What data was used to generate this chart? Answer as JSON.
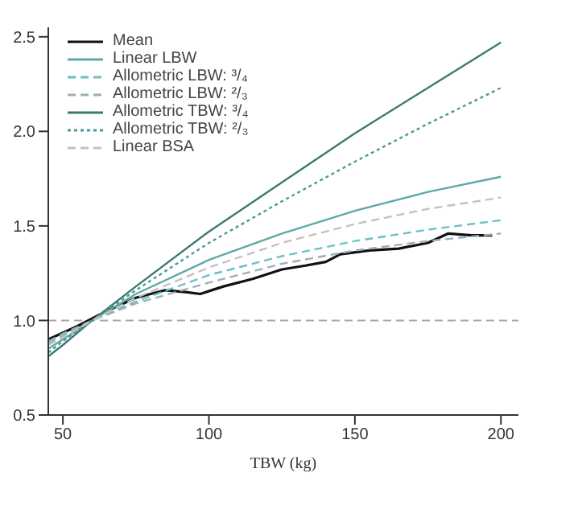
{
  "chart_data": {
    "type": "line",
    "xlabel": "TBW (kg)",
    "x": [
      45,
      50,
      60,
      75,
      100,
      125,
      150,
      175,
      200
    ],
    "xlim": [
      45,
      206
    ],
    "xticks": [
      50,
      100,
      150,
      200
    ],
    "ylim": [
      0.5,
      2.55
    ],
    "yticks": [
      {
        "value": 0.5,
        "label": "0.5"
      },
      {
        "value": 1,
        "label": "1.0"
      },
      {
        "value": 1.5,
        "label": "1.5"
      },
      {
        "value": 2,
        "label": "2.0"
      },
      {
        "value": 2.5,
        "label": "2.5"
      }
    ],
    "legend": "top left",
    "grid": false,
    "marker": "none",
    "ref_lines": [
      {
        "axis": "y",
        "value": 1,
        "color": "#a8a8a8",
        "line_style": "dashed"
      }
    ],
    "series": [
      {
        "name": "Mean",
        "color": "#111111",
        "line_style": "solid",
        "x": [
          45,
          55,
          65,
          75,
          85,
          92,
          97,
          105,
          115,
          125,
          133,
          140,
          145,
          155,
          165,
          175,
          182,
          190,
          197
        ],
        "values": [
          0.9,
          0.97,
          1.05,
          1.12,
          1.16,
          1.15,
          1.14,
          1.18,
          1.22,
          1.27,
          1.29,
          1.31,
          1.35,
          1.37,
          1.38,
          1.41,
          1.46,
          1.45,
          1.45
        ]
      },
      {
        "name": "Linear LBW",
        "color": "#5fa8a8",
        "line_style": "solid",
        "values": [
          0.85,
          0.9,
          1.0,
          1.14,
          1.32,
          1.46,
          1.58,
          1.68,
          1.76
        ]
      },
      {
        "name": "Allometric LBW: ³/₄",
        "color": "#6cc0c8",
        "line_style": "dashed",
        "values": [
          0.88,
          0.92,
          1.0,
          1.1,
          1.24,
          1.34,
          1.42,
          1.48,
          1.53
        ]
      },
      {
        "name": "Allometric LBW: ²/₃",
        "color": "#9ab0b8",
        "line_style": "dashed",
        "values": [
          0.89,
          0.93,
          1.0,
          1.09,
          1.2,
          1.3,
          1.37,
          1.42,
          1.46
        ]
      },
      {
        "name": "Allometric TBW: ³/₄",
        "color": "#3a7a70",
        "line_style": "solid",
        "values": [
          0.81,
          0.87,
          1.0,
          1.18,
          1.47,
          1.73,
          1.99,
          2.23,
          2.47
        ]
      },
      {
        "name": "Allometric TBW: ²/₃",
        "color": "#4a9a98",
        "line_style": "dotted",
        "values": [
          0.83,
          0.89,
          1.0,
          1.16,
          1.41,
          1.63,
          1.84,
          2.04,
          2.23
        ]
      },
      {
        "name": "Linear BSA",
        "color": "#c8c0c0",
        "line_style": "dashed",
        "values": [
          0.87,
          0.91,
          1.0,
          1.12,
          1.28,
          1.41,
          1.51,
          1.59,
          1.65
        ]
      }
    ]
  }
}
